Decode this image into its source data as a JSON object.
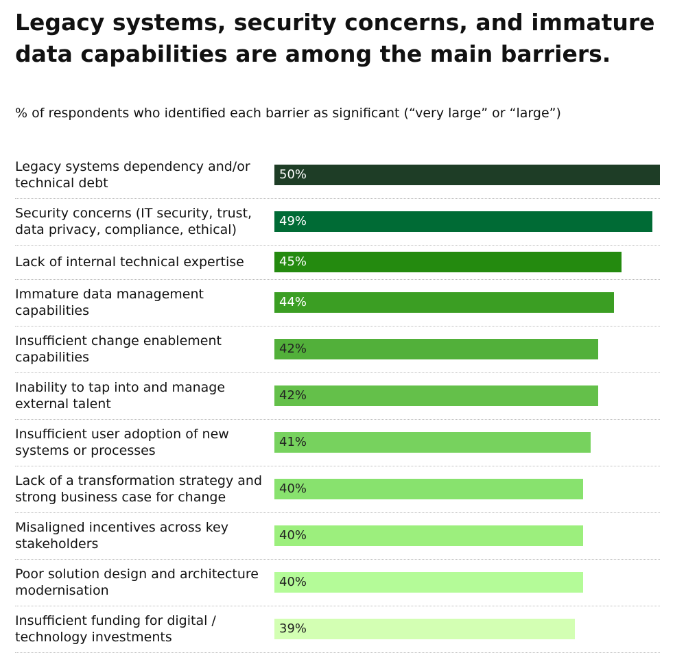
{
  "chart_data": {
    "type": "bar",
    "orientation": "horizontal",
    "title": "Legacy systems, security concerns, and immature data capabilities are among the main barriers.",
    "subtitle": "% of respondents who identified each barrier as significant (“very large” or “large”)",
    "categories": [
      "Legacy systems dependency and/or technical debt",
      "Security concerns (IT security, trust, data privacy, compliance, ethical)",
      "Lack of internal technical expertise",
      "Immature data management capabilities",
      "Insufficient change enablement capabilities",
      "Inability to tap into and manage external talent",
      "Insufficient user adoption of new systems or processes",
      "Lack of a transformation strategy and strong business case for change",
      "Misaligned incentives across key stakeholders",
      "Poor solution design and architecture modernisation",
      "Insufficient funding for digital / technology investments"
    ],
    "values": [
      50,
      49,
      45,
      44,
      42,
      42,
      41,
      40,
      40,
      40,
      39
    ],
    "value_labels": [
      "50%",
      "49%",
      "45%",
      "44%",
      "42%",
      "42%",
      "41%",
      "40%",
      "40%",
      "40%",
      "39%"
    ],
    "colors": [
      "#1e3d26",
      "#006b35",
      "#248a0f",
      "#3b9e23",
      "#52b03a",
      "#64c04a",
      "#77d25e",
      "#88e26e",
      "#9cef7d",
      "#b4fb98",
      "#d3ffb3"
    ],
    "xlim": [
      0,
      50
    ]
  }
}
